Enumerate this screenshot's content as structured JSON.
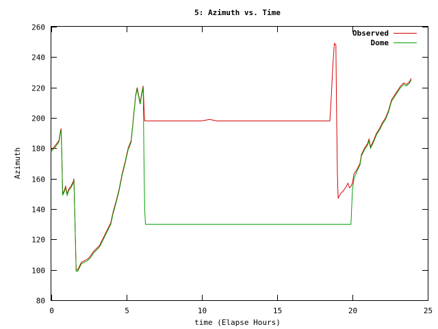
{
  "chart_data": {
    "type": "line",
    "title": "5: Azimuth vs. Time",
    "xlabel": "time (Elapse Hours)",
    "ylabel": "Azimuth",
    "xlim": [
      0,
      25
    ],
    "ylim": [
      80,
      260
    ],
    "xticks": [
      0,
      5,
      10,
      15,
      20,
      25
    ],
    "yticks": [
      80,
      100,
      120,
      140,
      160,
      180,
      200,
      220,
      240,
      260
    ],
    "grid": false,
    "legend_position": "top-right",
    "series": [
      {
        "name": "Observed",
        "color": "#d40000",
        "points": [
          [
            0.0,
            179
          ],
          [
            0.2,
            181
          ],
          [
            0.35,
            183
          ],
          [
            0.5,
            185
          ],
          [
            0.6,
            191
          ],
          [
            0.65,
            193
          ],
          [
            0.7,
            176
          ],
          [
            0.75,
            150
          ],
          [
            0.85,
            152
          ],
          [
            0.95,
            155
          ],
          [
            1.05,
            150
          ],
          [
            1.15,
            153
          ],
          [
            1.3,
            155
          ],
          [
            1.45,
            158
          ],
          [
            1.5,
            160
          ],
          [
            1.55,
            140
          ],
          [
            1.6,
            120
          ],
          [
            1.65,
            100
          ],
          [
            1.75,
            100
          ],
          [
            1.85,
            102
          ],
          [
            2.0,
            105
          ],
          [
            2.2,
            106
          ],
          [
            2.4,
            107
          ],
          [
            2.6,
            109
          ],
          [
            2.8,
            112
          ],
          [
            3.0,
            114
          ],
          [
            3.2,
            116
          ],
          [
            3.4,
            120
          ],
          [
            3.6,
            124
          ],
          [
            3.8,
            128
          ],
          [
            3.95,
            131
          ],
          [
            4.1,
            138
          ],
          [
            4.3,
            145
          ],
          [
            4.5,
            153
          ],
          [
            4.7,
            163
          ],
          [
            4.9,
            171
          ],
          [
            5.1,
            180
          ],
          [
            5.3,
            185
          ],
          [
            5.45,
            200
          ],
          [
            5.6,
            215
          ],
          [
            5.7,
            220
          ],
          [
            5.8,
            215
          ],
          [
            5.9,
            210
          ],
          [
            6.0,
            216
          ],
          [
            6.1,
            221
          ],
          [
            6.15,
            208
          ],
          [
            6.2,
            198
          ],
          [
            6.5,
            198
          ],
          [
            10.0,
            198
          ],
          [
            10.5,
            199
          ],
          [
            11.0,
            198
          ],
          [
            18.5,
            198
          ],
          [
            18.6,
            215
          ],
          [
            18.7,
            235
          ],
          [
            18.8,
            249
          ],
          [
            18.9,
            248
          ],
          [
            18.95,
            200
          ],
          [
            19.0,
            163
          ],
          [
            19.05,
            147
          ],
          [
            19.2,
            150
          ],
          [
            19.4,
            152
          ],
          [
            19.6,
            155
          ],
          [
            19.7,
            157
          ],
          [
            19.8,
            154
          ],
          [
            19.9,
            155
          ],
          [
            20.0,
            157
          ],
          [
            20.1,
            163
          ],
          [
            20.3,
            166
          ],
          [
            20.5,
            170
          ],
          [
            20.6,
            176
          ],
          [
            20.8,
            180
          ],
          [
            21.0,
            183
          ],
          [
            21.1,
            186
          ],
          [
            21.2,
            181
          ],
          [
            21.4,
            185
          ],
          [
            21.6,
            190
          ],
          [
            21.8,
            193
          ],
          [
            22.0,
            197
          ],
          [
            22.2,
            200
          ],
          [
            22.4,
            205
          ],
          [
            22.6,
            212
          ],
          [
            22.8,
            215
          ],
          [
            23.0,
            218
          ],
          [
            23.2,
            221
          ],
          [
            23.4,
            223
          ],
          [
            23.6,
            222
          ],
          [
            23.8,
            224
          ],
          [
            23.9,
            226
          ]
        ]
      },
      {
        "name": "Dome",
        "color": "#00a000",
        "points": [
          [
            0.0,
            178
          ],
          [
            0.2,
            180
          ],
          [
            0.35,
            182
          ],
          [
            0.5,
            184
          ],
          [
            0.6,
            190
          ],
          [
            0.65,
            192
          ],
          [
            0.7,
            175
          ],
          [
            0.75,
            149
          ],
          [
            0.85,
            151
          ],
          [
            0.95,
            154
          ],
          [
            1.05,
            149
          ],
          [
            1.15,
            152
          ],
          [
            1.3,
            154
          ],
          [
            1.45,
            157
          ],
          [
            1.5,
            159
          ],
          [
            1.55,
            140
          ],
          [
            1.6,
            120
          ],
          [
            1.65,
            99
          ],
          [
            1.75,
            99
          ],
          [
            1.85,
            101
          ],
          [
            2.0,
            104
          ],
          [
            2.2,
            105
          ],
          [
            2.4,
            106
          ],
          [
            2.6,
            108
          ],
          [
            2.8,
            111
          ],
          [
            3.0,
            113
          ],
          [
            3.2,
            115
          ],
          [
            3.4,
            119
          ],
          [
            3.6,
            123
          ],
          [
            3.8,
            127
          ],
          [
            3.95,
            130
          ],
          [
            4.1,
            137
          ],
          [
            4.3,
            144
          ],
          [
            4.5,
            152
          ],
          [
            4.7,
            162
          ],
          [
            4.9,
            170
          ],
          [
            5.1,
            179
          ],
          [
            5.3,
            184
          ],
          [
            5.45,
            199
          ],
          [
            5.6,
            214
          ],
          [
            5.7,
            219
          ],
          [
            5.8,
            214
          ],
          [
            5.9,
            209
          ],
          [
            6.0,
            215
          ],
          [
            6.1,
            220
          ],
          [
            6.15,
            175
          ],
          [
            6.2,
            140
          ],
          [
            6.25,
            130
          ],
          [
            10.0,
            130
          ],
          [
            15.0,
            130
          ],
          [
            19.0,
            130
          ],
          [
            19.9,
            130
          ],
          [
            20.0,
            153
          ],
          [
            20.1,
            160
          ],
          [
            20.3,
            165
          ],
          [
            20.5,
            169
          ],
          [
            20.6,
            175
          ],
          [
            20.8,
            179
          ],
          [
            21.0,
            182
          ],
          [
            21.1,
            185
          ],
          [
            21.2,
            180
          ],
          [
            21.4,
            184
          ],
          [
            21.6,
            189
          ],
          [
            21.8,
            192
          ],
          [
            22.0,
            196
          ],
          [
            22.2,
            199
          ],
          [
            22.4,
            204
          ],
          [
            22.6,
            211
          ],
          [
            22.8,
            214
          ],
          [
            23.0,
            217
          ],
          [
            23.2,
            220
          ],
          [
            23.4,
            222
          ],
          [
            23.6,
            221
          ],
          [
            23.8,
            223
          ],
          [
            23.9,
            225
          ]
        ]
      }
    ]
  }
}
